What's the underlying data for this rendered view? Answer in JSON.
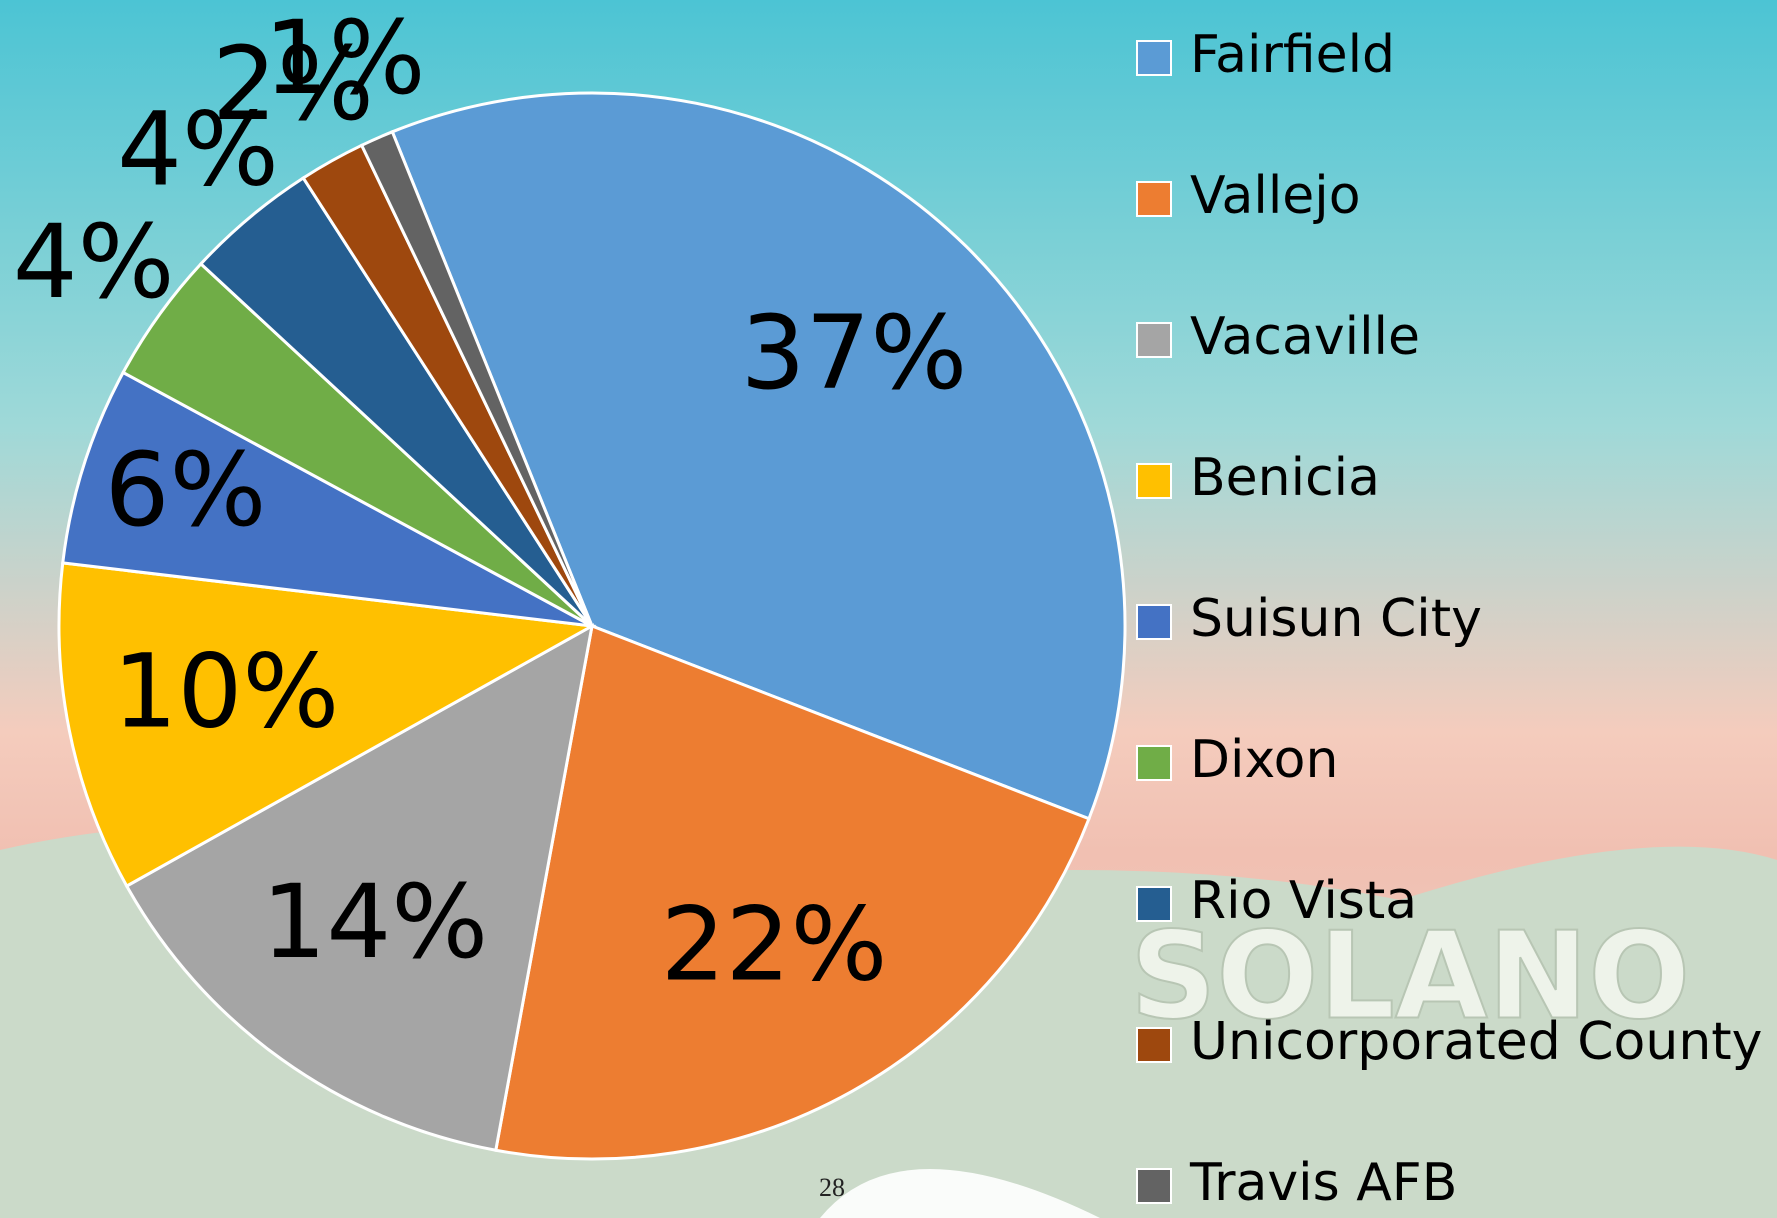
{
  "chart_data": {
    "type": "pie",
    "categories": [
      "Fairfield",
      "Vallejo",
      "Vacaville",
      "Benicia",
      "Suisun City",
      "Dixon",
      "Rio Vista",
      "Unicorporated County",
      "Travis AFB"
    ],
    "values": [
      37,
      22,
      14,
      10,
      6,
      4,
      4,
      2,
      1
    ],
    "value_labels": [
      "37%",
      "22%",
      "14%",
      "10%",
      "6%",
      "4%",
      "4%",
      "2%",
      "1%"
    ],
    "colors": [
      "#5b9bd5",
      "#ed7d31",
      "#a5a5a5",
      "#ffc000",
      "#4472c4",
      "#70ad47",
      "#255e91",
      "#9e480e",
      "#636363"
    ],
    "legend": "right"
  },
  "background_text": "SOLANO",
  "page_number": "28"
}
